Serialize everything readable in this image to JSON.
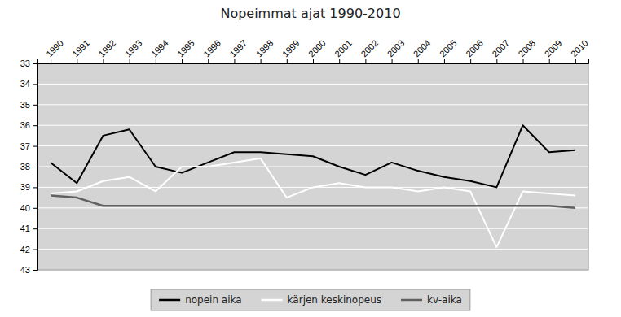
{
  "chart_data": {
    "type": "line",
    "title": "Nopeimmat ajat 1990-2010",
    "x": [
      1990,
      1991,
      1992,
      1993,
      1994,
      1995,
      1996,
      1997,
      1998,
      1999,
      2000,
      2001,
      2002,
      2003,
      2004,
      2005,
      2006,
      2007,
      2008,
      2009,
      2010
    ],
    "series": [
      {
        "name": "nopein aika",
        "color": "#000000",
        "values": [
          37.8,
          38.8,
          36.5,
          36.2,
          38.0,
          38.3,
          37.8,
          37.3,
          37.3,
          37.4,
          37.5,
          38.0,
          38.4,
          37.8,
          38.2,
          38.5,
          38.7,
          39.0,
          36.0,
          37.3,
          37.2
        ]
      },
      {
        "name": "kärjen keskinopeus",
        "color": "#ffffff",
        "values": [
          39.3,
          39.2,
          38.7,
          38.5,
          39.2,
          38.0,
          38.0,
          37.8,
          37.6,
          39.5,
          39.0,
          38.8,
          39.0,
          39.0,
          39.2,
          39.0,
          39.2,
          41.9,
          39.2,
          39.3,
          39.4
        ]
      },
      {
        "name": "kv-aika",
        "color": "#606060",
        "values": [
          39.4,
          39.5,
          39.9,
          39.9,
          39.9,
          39.9,
          39.9,
          39.9,
          39.9,
          39.9,
          39.9,
          39.9,
          39.9,
          39.9,
          39.9,
          39.9,
          39.9,
          39.9,
          39.9,
          39.9,
          40.0
        ]
      }
    ],
    "xlim": [
      1989.5,
      2010.5
    ],
    "xticks": [
      1990,
      1991,
      1992,
      1993,
      1994,
      1995,
      1996,
      1997,
      1998,
      1999,
      2000,
      2001,
      2002,
      2003,
      2004,
      2005,
      2006,
      2007,
      2008,
      2009,
      2010
    ],
    "ylim": [
      43,
      33
    ],
    "yticks": [
      33,
      34,
      35,
      36,
      37,
      38,
      39,
      40,
      41,
      42,
      43
    ],
    "grid": true,
    "legend": "bottom"
  }
}
